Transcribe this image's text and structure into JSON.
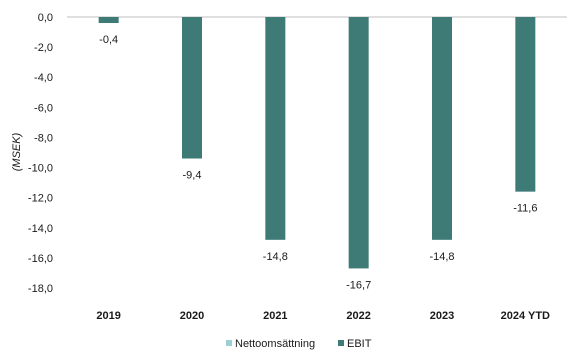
{
  "chart_data": {
    "type": "bar",
    "ylabel": "(MSEK)",
    "ylim": [
      -18.0,
      0.0
    ],
    "yticks": [
      "0,0",
      "-2,0",
      "-4,0",
      "-6,0",
      "-8,0",
      "-10,0",
      "-12,0",
      "-14,0",
      "-16,0",
      "-18,0"
    ],
    "ytick_values": [
      0,
      -2,
      -4,
      -6,
      -8,
      -10,
      -12,
      -14,
      -16,
      -18
    ],
    "categories": [
      "2019",
      "2020",
      "2021",
      "2022",
      "2023",
      "2024 YTD"
    ],
    "series": [
      {
        "name": "Nettoomsättning",
        "color": "#9ccfd3",
        "values": [
          null,
          null,
          null,
          null,
          null,
          null
        ],
        "labels": [
          "",
          "",
          "",
          "",
          "",
          ""
        ]
      },
      {
        "name": "EBIT",
        "color": "#3e7a76",
        "values": [
          -0.4,
          -9.4,
          -14.8,
          -16.7,
          -14.8,
          -11.6
        ],
        "labels": [
          "-0,4",
          "-9,4",
          "-14,8",
          "-16,7",
          "-14,8",
          "-11,6"
        ]
      }
    ],
    "grid": false,
    "legend": "bottom-center"
  }
}
